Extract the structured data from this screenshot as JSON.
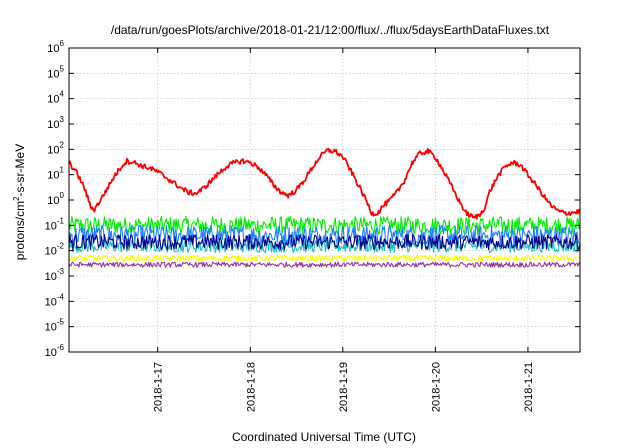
{
  "chart_data": {
    "type": "line",
    "title": "/data/run/goesPlots/archive/2018-01-21/12:00/flux/../flux/5daysEarthDataFluxes.txt",
    "xlabel": "Coordinated Universal Time (UTC)",
    "ylabel": {
      "pre": "protons/cm",
      "sup": "2",
      "post": "-s-sr-MeV"
    },
    "y_scale": "log",
    "ylim": [
      1e-06,
      1000000.0
    ],
    "xlim": [
      "2018-01-16 01:00",
      "2018-01-21 13:30"
    ],
    "grid": true,
    "legend": "none",
    "y_ticks": [
      {
        "base": "10",
        "exp": "-6",
        "value": 1e-06
      },
      {
        "base": "10",
        "exp": "-5",
        "value": 1e-05
      },
      {
        "base": "10",
        "exp": "-4",
        "value": 0.0001
      },
      {
        "base": "10",
        "exp": "-3",
        "value": 0.001
      },
      {
        "base": "10",
        "exp": "-2",
        "value": 0.01
      },
      {
        "base": "10",
        "exp": "-1",
        "value": 0.1
      },
      {
        "base": "10",
        "exp": "0",
        "value": 1
      },
      {
        "base": "10",
        "exp": "1",
        "value": 10
      },
      {
        "base": "10",
        "exp": "2",
        "value": 100
      },
      {
        "base": "10",
        "exp": "3",
        "value": 1000
      },
      {
        "base": "10",
        "exp": "4",
        "value": 10000
      },
      {
        "base": "10",
        "exp": "5",
        "value": 100000
      },
      {
        "base": "10",
        "exp": "6",
        "value": 1000000
      }
    ],
    "x_ticks": [
      {
        "label": "2018-1-17",
        "date": "2018-01-17"
      },
      {
        "label": "2018-1-18",
        "date": "2018-01-18"
      },
      {
        "label": "2018-1-19",
        "date": "2018-01-19"
      },
      {
        "label": "2018-1-20",
        "date": "2018-01-20"
      },
      {
        "label": "2018-1-21",
        "date": "2018-01-21"
      }
    ],
    "series": [
      {
        "color": "#ff0000",
        "noise": 0.1,
        "points": [
          [
            "2018-01-16 01:00",
            30
          ],
          [
            "2018-01-16 03:00",
            12
          ],
          [
            "2018-01-16 05:00",
            3
          ],
          [
            "2018-01-16 06:30",
            0.6
          ],
          [
            "2018-01-16 07:30",
            0.4
          ],
          [
            "2018-01-16 09:00",
            0.9
          ],
          [
            "2018-01-16 11:00",
            3
          ],
          [
            "2018-01-16 13:00",
            10
          ],
          [
            "2018-01-16 15:00",
            25
          ],
          [
            "2018-01-16 16:00",
            35
          ],
          [
            "2018-01-16 18:00",
            30
          ],
          [
            "2018-01-16 20:00",
            22
          ],
          [
            "2018-01-16 22:00",
            18
          ],
          [
            "2018-01-17 00:00",
            13
          ],
          [
            "2018-01-17 02:00",
            8
          ],
          [
            "2018-01-17 04:00",
            5
          ],
          [
            "2018-01-17 06:00",
            3
          ],
          [
            "2018-01-17 08:00",
            2
          ],
          [
            "2018-01-17 10:00",
            1.8
          ],
          [
            "2018-01-17 12:00",
            3
          ],
          [
            "2018-01-17 14:00",
            6
          ],
          [
            "2018-01-17 16:00",
            12
          ],
          [
            "2018-01-17 18:00",
            22
          ],
          [
            "2018-01-17 20:00",
            30
          ],
          [
            "2018-01-17 22:00",
            35
          ],
          [
            "2018-01-18 00:00",
            30
          ],
          [
            "2018-01-18 02:00",
            20
          ],
          [
            "2018-01-18 04:00",
            10
          ],
          [
            "2018-01-18 06:00",
            4
          ],
          [
            "2018-01-18 08:00",
            2
          ],
          [
            "2018-01-18 10:00",
            1.5
          ],
          [
            "2018-01-18 12:00",
            2.5
          ],
          [
            "2018-01-18 14:00",
            6
          ],
          [
            "2018-01-18 16:00",
            18
          ],
          [
            "2018-01-18 18:00",
            50
          ],
          [
            "2018-01-18 20:00",
            90
          ],
          [
            "2018-01-18 22:00",
            85
          ],
          [
            "2018-01-19 00:00",
            50
          ],
          [
            "2018-01-19 02:00",
            15
          ],
          [
            "2018-01-19 04:00",
            4
          ],
          [
            "2018-01-19 06:00",
            1
          ],
          [
            "2018-01-19 07:30",
            0.3
          ],
          [
            "2018-01-19 09:00",
            0.3
          ],
          [
            "2018-01-19 10:30",
            0.6
          ],
          [
            "2018-01-19 12:00",
            0.9
          ],
          [
            "2018-01-19 14:00",
            2
          ],
          [
            "2018-01-19 16:00",
            6
          ],
          [
            "2018-01-19 18:00",
            30
          ],
          [
            "2018-01-19 20:00",
            70
          ],
          [
            "2018-01-19 22:00",
            85
          ],
          [
            "2018-01-20 00:00",
            50
          ],
          [
            "2018-01-20 02:00",
            15
          ],
          [
            "2018-01-20 04:00",
            4
          ],
          [
            "2018-01-20 06:00",
            1
          ],
          [
            "2018-01-20 08:00",
            0.3
          ],
          [
            "2018-01-20 10:00",
            0.2
          ],
          [
            "2018-01-20 11:30",
            0.25
          ],
          [
            "2018-01-20 13:00",
            0.6
          ],
          [
            "2018-01-20 14:00",
            2
          ],
          [
            "2018-01-20 16:00",
            8
          ],
          [
            "2018-01-20 18:00",
            20
          ],
          [
            "2018-01-20 20:00",
            30
          ],
          [
            "2018-01-20 22:00",
            25
          ],
          [
            "2018-01-21 00:00",
            10
          ],
          [
            "2018-01-21 02:00",
            4
          ],
          [
            "2018-01-21 04:00",
            1.5
          ],
          [
            "2018-01-21 06:00",
            0.6
          ],
          [
            "2018-01-21 08:00",
            0.35
          ],
          [
            "2018-01-21 10:00",
            0.3
          ],
          [
            "2018-01-21 13:30",
            0.35
          ]
        ]
      },
      {
        "color": "#00ee00",
        "noise": 0.35,
        "points": [
          [
            "2018-01-16 01:00",
            0.1
          ],
          [
            "2018-01-21 13:30",
            0.1
          ]
        ]
      },
      {
        "color": "#1f7fff",
        "noise": 0.4,
        "points": [
          [
            "2018-01-16 01:00",
            0.04
          ],
          [
            "2018-01-21 13:30",
            0.04
          ]
        ]
      },
      {
        "color": "#20c0c0",
        "noise": 0.25,
        "points": [
          [
            "2018-01-16 01:00",
            0.015
          ],
          [
            "2018-01-21 13:30",
            0.015
          ]
        ]
      },
      {
        "color": "#00008b",
        "noise": 0.3,
        "points": [
          [
            "2018-01-16 01:00",
            0.022
          ],
          [
            "2018-01-21 13:30",
            0.022
          ]
        ]
      },
      {
        "color": "#ffff00",
        "noise": 0.12,
        "points": [
          [
            "2018-01-16 01:00",
            0.005
          ],
          [
            "2018-01-21 13:30",
            0.005
          ]
        ]
      },
      {
        "color": "#993399",
        "noise": 0.1,
        "points": [
          [
            "2018-01-16 01:00",
            0.0028
          ],
          [
            "2018-01-21 13:30",
            0.0028
          ]
        ]
      }
    ]
  }
}
